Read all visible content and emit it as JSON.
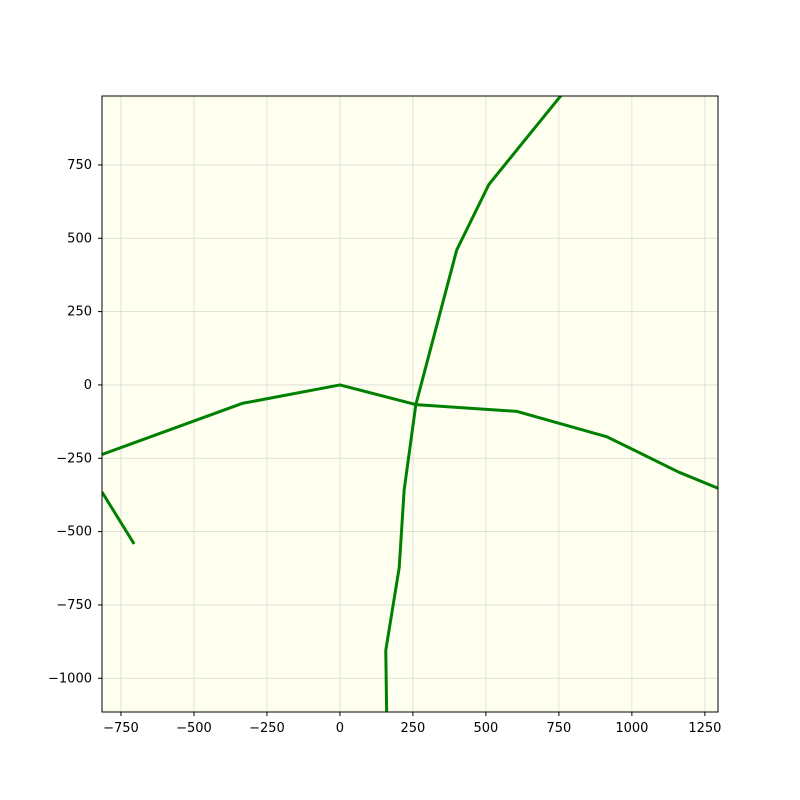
{
  "chart_data": {
    "type": "line",
    "title": "",
    "xlabel": "",
    "ylabel": "",
    "xlim": [
      -815,
      1295
    ],
    "ylim": [
      -1115,
      985
    ],
    "grid": true,
    "legend": "none",
    "x_ticks": [
      -750,
      -500,
      -250,
      0,
      250,
      500,
      750,
      1000,
      1250
    ],
    "x_tick_labels": [
      "−750",
      "−500",
      "−250",
      "0",
      "250",
      "500",
      "750",
      "1000",
      "1250"
    ],
    "y_ticks": [
      750,
      500,
      250,
      0,
      -250,
      -500,
      -750,
      -1000
    ],
    "y_tick_labels": [
      "750",
      "500",
      "250",
      "0",
      "−250",
      "−500",
      "−750",
      "−1000"
    ],
    "colors": {
      "line": "#008000",
      "plot_background": "#fffff0",
      "grid": "#cfcfcf",
      "figure_background": "#ffffff"
    },
    "series": [
      {
        "points": [
          [
            -815,
            -237
          ],
          [
            -335,
            -63
          ],
          [
            0,
            0
          ],
          [
            260,
            -67
          ],
          [
            605,
            -90
          ],
          [
            915,
            -177
          ],
          [
            1160,
            -297
          ],
          [
            1295,
            -352
          ]
        ]
      },
      {
        "points": [
          [
            160,
            -1115
          ],
          [
            157,
            -905
          ],
          [
            203,
            -623
          ],
          [
            220,
            -358
          ],
          [
            260,
            -67
          ],
          [
            400,
            460
          ],
          [
            510,
            683
          ],
          [
            680,
            892
          ],
          [
            760,
            990
          ]
        ]
      },
      {
        "points": [
          [
            -815,
            -365
          ],
          [
            -705,
            -542
          ]
        ]
      }
    ]
  }
}
